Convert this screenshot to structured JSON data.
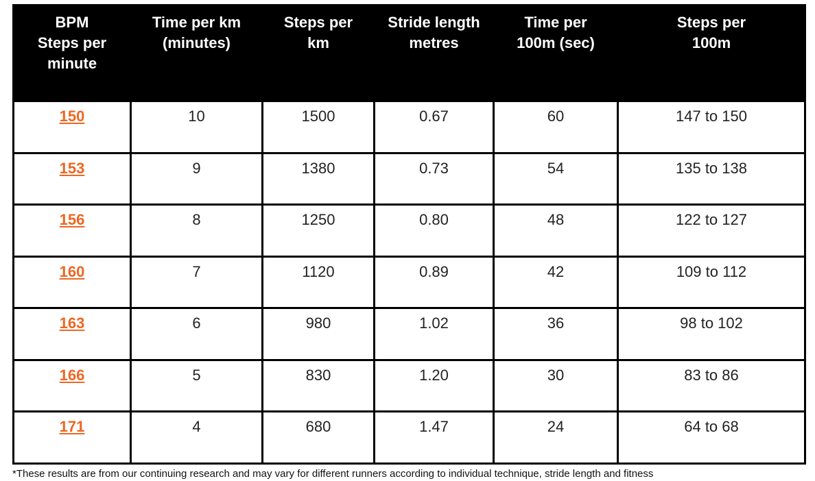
{
  "table": {
    "headers": [
      "BPM\nSteps per\nminute",
      "Time per km\n(minutes)",
      "Steps per\nkm",
      "Stride length\nmetres",
      "Time per\n100m (sec)",
      "Steps per\n100m"
    ],
    "rows": [
      [
        "150",
        "10",
        "1500",
        "0.67",
        "60",
        "147  to 150"
      ],
      [
        "153",
        "9",
        "1380",
        "0.73",
        "54",
        "135  to 138"
      ],
      [
        "156",
        "8",
        "1250",
        "0.80",
        "48",
        "122  to 127"
      ],
      [
        "160",
        "7",
        "1120",
        "0.89",
        "42",
        "109  to 112"
      ],
      [
        "163",
        "6",
        "980",
        "1.02",
        "36",
        "98  to 102"
      ],
      [
        "166",
        "5",
        "830",
        "1.20",
        "30",
        "83  to 86"
      ],
      [
        "171",
        "4",
        "680",
        "1.47",
        "24",
        "64 to 68"
      ]
    ]
  },
  "colors": {
    "header_background": "#000000",
    "header_text": "#ffffff",
    "bpm_link": "#ee6622"
  },
  "footnote": "*These results are from our continuing research and may vary for different runners according to individual technique, stride length and fitness"
}
